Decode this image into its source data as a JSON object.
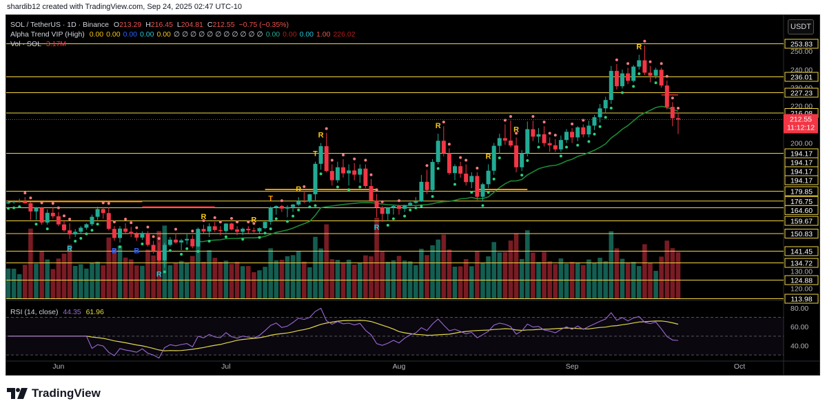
{
  "header": {
    "credit": "shardib12 created with TradingView.com, Sep 24, 2025 02:47 UTC-10"
  },
  "legend": {
    "symbol": "SOL / TetherUS · 1D · Binance",
    "ohlc": [
      {
        "label": "O",
        "value": "213.29"
      },
      {
        "label": "H",
        "value": "216.45"
      },
      {
        "label": "L",
        "value": "204.81"
      },
      {
        "label": "C",
        "value": "212.55"
      },
      {
        "label": "",
        "value": "−0.75 (−0.35%)"
      }
    ],
    "alpha_title": "Alpha Trend VIP (High)",
    "alpha_values": [
      {
        "v": "0.00",
        "c": "#f5c518"
      },
      {
        "v": "0.00",
        "c": "#f5c518"
      },
      {
        "v": "0.00",
        "c": "#2962ff"
      },
      {
        "v": "0.00",
        "c": "#26c6da"
      },
      {
        "v": "0.00",
        "c": "#f5c518"
      },
      {
        "v": "∅ ∅ ∅ ∅ ∅ ∅ ∅ ∅ ∅ ∅ ∅",
        "c": "#d1d4dc"
      },
      {
        "v": "0.00",
        "c": "#22ab94"
      },
      {
        "v": "0.00",
        "c": "#b71c1c"
      },
      {
        "v": "0.00",
        "c": "#26c6da"
      },
      {
        "v": "1.00",
        "c": "#ef5350"
      },
      {
        "v": "226.02",
        "c": "#b71c1c"
      }
    ],
    "vol_title": "Vol · SOL",
    "vol_value": "3.17M",
    "rsi_title": "RSI (14, close)",
    "rsi_value": "44.35",
    "rsi_ma": "61.96"
  },
  "currency": "USDT",
  "brand": "TradingView",
  "colors": {
    "up": "#22ab94",
    "down": "#f23645",
    "level": "#f5d742",
    "rsi": "#9c6bd6"
  },
  "chart_data": {
    "type": "candlestick",
    "y_ticks": [
      "250.00",
      "240.00",
      "230.00",
      "220.00",
      "200.00",
      "130.00",
      "120.00"
    ],
    "levels": [
      "253.83",
      "236.01",
      "227.23",
      "216.08",
      "194.17",
      "194.17",
      "194.17",
      "194.17",
      "179.85",
      "176.75",
      "164.60",
      "159.67",
      "150.83",
      "141.45",
      "134.72",
      "124.88",
      "113.98"
    ],
    "last_price": "212.55",
    "countdown": "11:12:12",
    "x_labels": [
      {
        "label": "Jun",
        "i": 9
      },
      {
        "label": "Jul",
        "i": 39
      },
      {
        "label": "Aug",
        "i": 70
      },
      {
        "label": "Sep",
        "i": 101
      },
      {
        "label": "Oct",
        "i": 131
      }
    ],
    "candles": [
      [
        172.5,
        176.0,
        171.0,
        174.5
      ],
      [
        174.5,
        177.0,
        172.0,
        175.8
      ],
      [
        175.8,
        177.5,
        174.0,
        176.3
      ],
      [
        176.3,
        178.0,
        172.0,
        172.8
      ],
      [
        172.8,
        175.0,
        160.0,
        163.2
      ],
      [
        163.2,
        166.0,
        160.0,
        164.6
      ],
      [
        164.6,
        166.0,
        157.0,
        158.5
      ],
      [
        158.5,
        164.0,
        157.0,
        162.7
      ],
      [
        162.7,
        165.0,
        160.5,
        161.4
      ],
      [
        161.4,
        163.0,
        156.0,
        157.2
      ],
      [
        157.2,
        160.0,
        152.0,
        153.1
      ],
      [
        153.1,
        158.0,
        148.0,
        150.4
      ],
      [
        150.4,
        154.0,
        149.0,
        152.1
      ],
      [
        152.1,
        156.0,
        150.5,
        154.9
      ],
      [
        154.9,
        158.0,
        153.5,
        157.3
      ],
      [
        157.3,
        162.0,
        156.0,
        161.2
      ],
      [
        161.2,
        166.5,
        160.0,
        164.1
      ],
      [
        164.1,
        166.0,
        160.5,
        162.6
      ],
      [
        162.6,
        165.0,
        153.0,
        154.1
      ],
      [
        154.1,
        156.0,
        147.0,
        148.5
      ],
      [
        148.5,
        156.0,
        146.0,
        154.3
      ],
      [
        154.3,
        158.0,
        151.0,
        152.1
      ],
      [
        152.1,
        155.5,
        149.0,
        150.7
      ],
      [
        150.7,
        152.0,
        147.0,
        148.7
      ],
      [
        148.7,
        152.5,
        147.5,
        151.3
      ],
      [
        151.3,
        152.5,
        144.0,
        144.8
      ],
      [
        144.8,
        147.0,
        140.0,
        141.7
      ],
      [
        141.7,
        146.0,
        134.0,
        136.2
      ],
      [
        136.2,
        146.0,
        132.0,
        144.8
      ],
      [
        144.8,
        149.0,
        144.0,
        147.6
      ],
      [
        147.6,
        151.0,
        145.5,
        146.1
      ],
      [
        146.1,
        148.0,
        142.0,
        147.2
      ],
      [
        147.2,
        150.5,
        145.0,
        148.0
      ],
      [
        148.0,
        150.0,
        143.0,
        144.0
      ],
      [
        144.0,
        155.0,
        143.5,
        154.1
      ],
      [
        154.1,
        157.0,
        151.0,
        152.3
      ],
      [
        152.3,
        158.0,
        149.0,
        155.9
      ],
      [
        155.9,
        159.0,
        152.0,
        153.3
      ],
      [
        153.3,
        156.0,
        150.0,
        152.6
      ],
      [
        152.6,
        158.0,
        151.5,
        157.8
      ],
      [
        157.8,
        158.5,
        153.0,
        153.7
      ],
      [
        153.7,
        156.0,
        150.0,
        152.1
      ],
      [
        152.1,
        155.0,
        150.0,
        154.2
      ],
      [
        154.2,
        156.0,
        151.0,
        153.1
      ],
      [
        153.1,
        155.0,
        151.5,
        152.4
      ],
      [
        152.4,
        155.0,
        151.0,
        154.6
      ],
      [
        154.6,
        159.0,
        154.0,
        159.0
      ],
      [
        159.0,
        167.0,
        157.0,
        164.8
      ],
      [
        164.8,
        169.0,
        162.0,
        167.7
      ],
      [
        167.7,
        170.0,
        163.0,
        164.3
      ],
      [
        164.3,
        169.0,
        161.0,
        165.9
      ],
      [
        165.9,
        171.5,
        163.0,
        170.4
      ],
      [
        170.4,
        178.0,
        168.0,
        176.6
      ],
      [
        176.6,
        180.0,
        173.0,
        175.7
      ],
      [
        175.7,
        179.0,
        173.5,
        178.9
      ],
      [
        178.9,
        191.0,
        176.0,
        190.2
      ],
      [
        190.2,
        200.0,
        188.0,
        198.2
      ],
      [
        198.2,
        205.5,
        187.0,
        187.5
      ],
      [
        187.5,
        190.0,
        182.0,
        184.0
      ],
      [
        184.0,
        191.0,
        183.0,
        188.9
      ],
      [
        188.9,
        192.0,
        185.0,
        186.6
      ],
      [
        186.6,
        190.0,
        182.0,
        187.7
      ],
      [
        187.7,
        190.5,
        184.0,
        186.1
      ],
      [
        186.1,
        190.0,
        183.0,
        188.4
      ],
      [
        188.4,
        190.0,
        181.0,
        181.8
      ],
      [
        181.8,
        184.5,
        176.0,
        176.9
      ],
      [
        176.9,
        179.0,
        161.0,
        165.0
      ],
      [
        165.0,
        168.0,
        159.0,
        162.3
      ],
      [
        162.3,
        166.0,
        159.5,
        164.6
      ],
      [
        164.6,
        169.0,
        162.0,
        167.8
      ],
      [
        167.8,
        170.0,
        162.0,
        164.2
      ],
      [
        164.2,
        170.0,
        163.0,
        169.5
      ],
      [
        169.5,
        175.0,
        168.0,
        173.6
      ],
      [
        173.6,
        178.0,
        172.0,
        176.1
      ],
      [
        176.1,
        186.0,
        175.0,
        183.4
      ],
      [
        183.4,
        188.0,
        179.0,
        180.3
      ],
      [
        180.3,
        192.0,
        179.5,
        190.9
      ],
      [
        190.9,
        205.0,
        190.0,
        201.2
      ],
      [
        201.2,
        209.0,
        193.0,
        194.2
      ],
      [
        194.2,
        197.0,
        186.0,
        186.7
      ],
      [
        186.7,
        190.0,
        184.0,
        189.3
      ],
      [
        189.3,
        191.0,
        185.0,
        186.5
      ],
      [
        186.5,
        190.0,
        182.0,
        183.3
      ],
      [
        183.3,
        187.0,
        181.0,
        185.6
      ],
      [
        185.6,
        187.0,
        177.0,
        178.1
      ],
      [
        178.1,
        183.0,
        176.0,
        182.5
      ],
      [
        182.5,
        190.0,
        181.0,
        187.6
      ],
      [
        187.6,
        200.0,
        186.0,
        198.4
      ],
      [
        198.4,
        205.0,
        194.0,
        202.6
      ],
      [
        202.6,
        210.0,
        199.0,
        201.3
      ],
      [
        201.3,
        212.0,
        197.5,
        198.6
      ],
      [
        198.6,
        203.0,
        187.0,
        188.9
      ],
      [
        188.9,
        196.0,
        187.5,
        194.2
      ],
      [
        194.2,
        211.5,
        193.0,
        207.4
      ],
      [
        207.4,
        212.0,
        201.0,
        203.4
      ],
      [
        203.4,
        208.0,
        200.0,
        204.7
      ],
      [
        204.7,
        209.0,
        198.0,
        199.9
      ],
      [
        199.9,
        203.0,
        195.0,
        198.7
      ],
      [
        198.7,
        202.0,
        195.0,
        196.4
      ],
      [
        196.4,
        204.0,
        195.0,
        201.6
      ],
      [
        201.6,
        207.5,
        200.0,
        206.0
      ],
      [
        206.0,
        208.0,
        200.0,
        203.0
      ],
      [
        203.0,
        209.0,
        201.0,
        208.4
      ],
      [
        208.4,
        210.0,
        203.0,
        204.6
      ],
      [
        204.6,
        212.0,
        203.0,
        209.3
      ],
      [
        209.3,
        215.0,
        207.0,
        213.8
      ],
      [
        213.8,
        221.0,
        211.0,
        218.6
      ],
      [
        218.6,
        225.0,
        216.0,
        223.2
      ],
      [
        223.2,
        242.0,
        221.0,
        239.3
      ],
      [
        239.3,
        243.0,
        229.0,
        230.8
      ],
      [
        230.8,
        240.0,
        229.5,
        237.9
      ],
      [
        237.9,
        241.0,
        232.0,
        233.8
      ],
      [
        233.8,
        242.5,
        233.0,
        241.6
      ],
      [
        241.6,
        248.0,
        240.0,
        245.0
      ],
      [
        245.0,
        253.0,
        237.0,
        238.3
      ],
      [
        238.3,
        242.0,
        233.0,
        236.6
      ],
      [
        236.6,
        241.0,
        235.0,
        239.9
      ],
      [
        239.9,
        241.0,
        230.0,
        231.2
      ],
      [
        231.2,
        234.0,
        218.0,
        219.4
      ],
      [
        219.4,
        222.0,
        209.0,
        213.3
      ],
      [
        213.3,
        216.45,
        204.81,
        212.55
      ]
    ],
    "alpha_trend": [
      {
        "from": 0,
        "to": 24,
        "value": 176.0,
        "color": "#ff9800",
        "width": 2
      },
      {
        "from": 24,
        "to": 37,
        "value": 166.0,
        "color": "#d32f2f",
        "width": 2
      },
      {
        "from": 46,
        "to": 66,
        "value": 180.5,
        "color": "#ff9800",
        "width": 2
      },
      {
        "from": 84,
        "to": 93,
        "value": 180.5,
        "color": "#ff9800",
        "width": 2
      }
    ],
    "signals": [
      {
        "i": 11,
        "text": "R",
        "pos": "below",
        "color": "#26c6da"
      },
      {
        "i": 19,
        "text": "B",
        "pos": "below",
        "color": "#2962ff"
      },
      {
        "i": 23,
        "text": "B",
        "pos": "below",
        "color": "#2962ff"
      },
      {
        "i": 27,
        "text": "R",
        "pos": "below",
        "color": "#26c6da"
      },
      {
        "i": 35,
        "text": "R",
        "pos": "above",
        "color": "#f5c518"
      },
      {
        "i": 44,
        "text": "R",
        "pos": "above",
        "color": "#f5c518"
      },
      {
        "i": 47,
        "text": "T",
        "pos": "above",
        "color": "#ff9800"
      },
      {
        "i": 52,
        "text": "R",
        "pos": "above",
        "color": "#f5c518"
      },
      {
        "i": 55,
        "text": "T",
        "pos": "above",
        "color": "#f5c518"
      },
      {
        "i": 56,
        "text": "R",
        "pos": "above",
        "color": "#f5c518"
      },
      {
        "i": 66,
        "text": "R",
        "pos": "below",
        "color": "#26c6da"
      },
      {
        "i": 77,
        "text": "R",
        "pos": "above",
        "color": "#f5c518"
      },
      {
        "i": 86,
        "text": "R",
        "pos": "above",
        "color": "#f5c518"
      },
      {
        "i": 91,
        "text": "R",
        "pos": "above",
        "color": "#f5c518"
      },
      {
        "i": 113,
        "text": "R",
        "pos": "above",
        "color": "#f5c518"
      }
    ],
    "rsi_axis": [
      "80.00",
      "60.00",
      "40.00"
    ]
  }
}
